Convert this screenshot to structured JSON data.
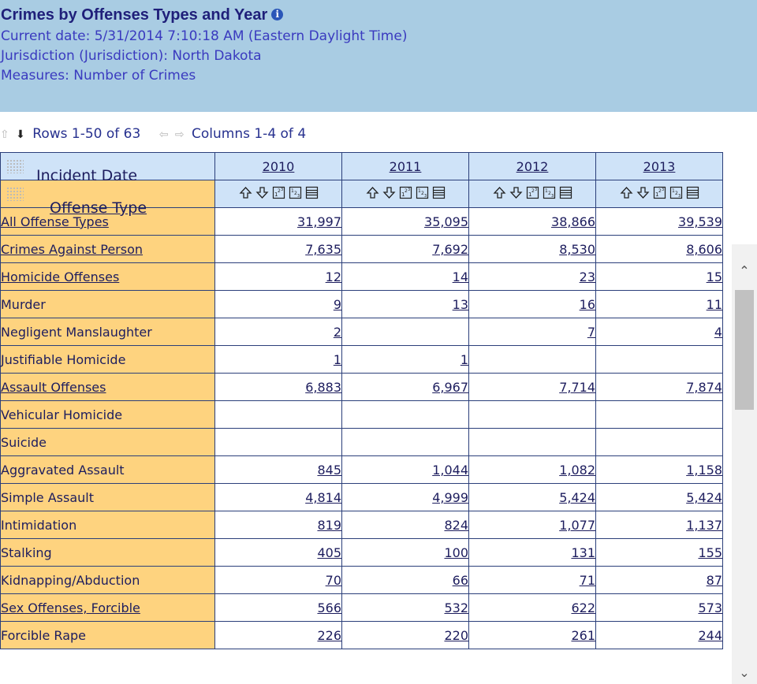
{
  "header": {
    "title": "Crimes by Offenses Types and Year",
    "info_glyph": "i",
    "current_date": "Current date: 5/31/2014 7:10:18 AM (Eastern Daylight Time)",
    "jurisdiction": "Jurisdiction (Jurisdiction): North Dakota",
    "measures": "Measures: Number of Crimes"
  },
  "nav": {
    "rows_label": "Rows 1-50 of 63",
    "cols_label": "Columns 1-4 of 4"
  },
  "table": {
    "row_header_top": "Incident Date",
    "row_header_bottom": "Offense Type",
    "years": [
      "2010",
      "2011",
      "2012",
      "2013"
    ],
    "rows": [
      {
        "label": "All Offense Types",
        "link": true,
        "values": [
          "31,997",
          "35,095",
          "38,866",
          "39,539"
        ]
      },
      {
        "label": "Crimes Against Person",
        "link": true,
        "values": [
          "7,635",
          "7,692",
          "8,530",
          "8,606"
        ]
      },
      {
        "label": "Homicide Offenses",
        "link": true,
        "values": [
          "12",
          "14",
          "23",
          "15"
        ]
      },
      {
        "label": "Murder",
        "link": false,
        "values": [
          "9",
          "13",
          "16",
          "11"
        ]
      },
      {
        "label": "Negligent Manslaughter",
        "link": false,
        "values": [
          "2",
          "",
          "7",
          "4"
        ]
      },
      {
        "label": "Justifiable Homicide",
        "link": false,
        "values": [
          "1",
          "1",
          "",
          ""
        ]
      },
      {
        "label": "Assault Offenses",
        "link": true,
        "values": [
          "6,883",
          "6,967",
          "7,714",
          "7,874"
        ]
      },
      {
        "label": "Vehicular Homicide",
        "link": false,
        "values": [
          "",
          "",
          "",
          ""
        ]
      },
      {
        "label": "Suicide",
        "link": false,
        "values": [
          "",
          "",
          "",
          ""
        ]
      },
      {
        "label": "Aggravated Assault",
        "link": false,
        "values": [
          "845",
          "1,044",
          "1,082",
          "1,158"
        ]
      },
      {
        "label": "Simple Assault",
        "link": false,
        "values": [
          "4,814",
          "4,999",
          "5,424",
          "5,424"
        ]
      },
      {
        "label": "Intimidation",
        "link": false,
        "values": [
          "819",
          "824",
          "1,077",
          "1,137"
        ]
      },
      {
        "label": "Stalking",
        "link": false,
        "values": [
          "405",
          "100",
          "131",
          "155"
        ]
      },
      {
        "label": "Kidnapping/Abduction",
        "link": false,
        "values": [
          "70",
          "66",
          "71",
          "87"
        ]
      },
      {
        "label": "Sex Offenses, Forcible",
        "link": true,
        "values": [
          "566",
          "532",
          "622",
          "573"
        ]
      },
      {
        "label": "Forcible Rape",
        "link": false,
        "values": [
          "226",
          "220",
          "261",
          "244"
        ]
      }
    ]
  },
  "colors": {
    "header_bg": "#a9cce3",
    "row_header_bg": "#fed37f",
    "col_header_bg": "#cfe3f8",
    "grid_line": "#2b3f7a"
  }
}
